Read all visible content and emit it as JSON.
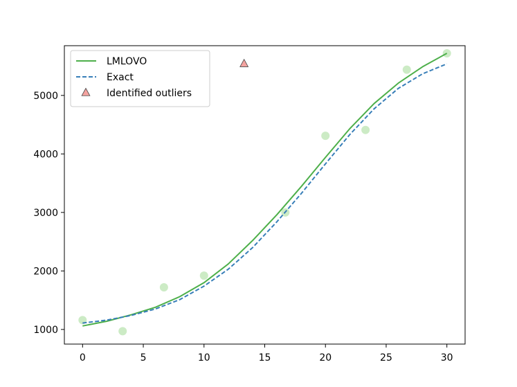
{
  "chart_data": {
    "type": "line",
    "title": "",
    "xlabel": "",
    "ylabel": "",
    "xlim": [
      -1.5,
      31.5
    ],
    "ylim": [
      750,
      5850
    ],
    "x_ticks": [
      0,
      5,
      10,
      15,
      20,
      25,
      30
    ],
    "y_ticks": [
      1000,
      2000,
      3000,
      4000,
      5000
    ],
    "grid": false,
    "legend_position": "upper-left",
    "series": [
      {
        "name": "LMLOVO",
        "kind": "line",
        "color": "#4daf4a",
        "line_style": "solid",
        "x": [
          0,
          2,
          4,
          6,
          8,
          10,
          12,
          14,
          16,
          18,
          20,
          22,
          24,
          26,
          28,
          30
        ],
        "y": [
          1060,
          1140,
          1250,
          1380,
          1560,
          1800,
          2120,
          2520,
          2960,
          3440,
          3940,
          4430,
          4860,
          5210,
          5490,
          5720
        ]
      },
      {
        "name": "Exact",
        "kind": "line",
        "color": "#377eb8",
        "line_style": "dashed",
        "x": [
          0,
          2,
          4,
          6,
          8,
          10,
          12,
          14,
          16,
          18,
          20,
          22,
          24,
          26,
          28,
          30
        ],
        "y": [
          1110,
          1160,
          1240,
          1350,
          1510,
          1740,
          2030,
          2400,
          2840,
          3320,
          3830,
          4330,
          4770,
          5120,
          5370,
          5540
        ]
      },
      {
        "name": "Identified outliers",
        "kind": "marker",
        "marker": "triangle",
        "color": "#f4a3a0",
        "edge_color": "#444444",
        "x": [
          13.3
        ],
        "y": [
          5540
        ]
      },
      {
        "kind": "scatter",
        "color": "#ccebc5",
        "x": [
          0,
          3.3,
          6.7,
          10,
          16.7,
          20,
          23.3,
          26.7,
          30
        ],
        "y": [
          1160,
          970,
          1720,
          1920,
          3000,
          4310,
          4410,
          5440,
          5720
        ]
      }
    ]
  }
}
